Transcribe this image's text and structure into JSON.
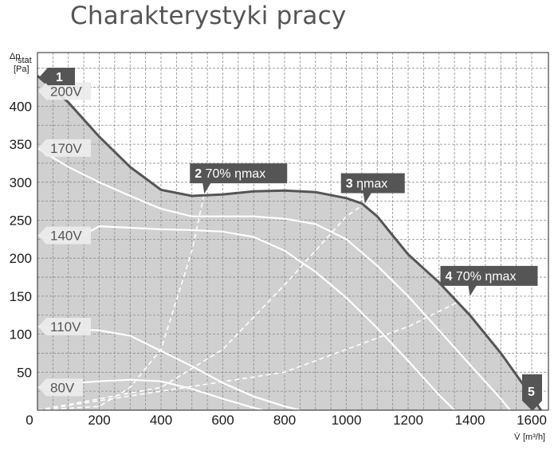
{
  "title": "Charakterystyki pracy",
  "chart_data": {
    "type": "line",
    "ylabel_main": "Δp",
    "ylabel_sub": "stat",
    "ylabel_unit": "[Pa]",
    "xlabel_main": "V̇",
    "xlabel_unit": "[m³/h]",
    "xlim": [
      0,
      1650
    ],
    "ylim": [
      0,
      470
    ],
    "x_ticks": [
      "0",
      "200",
      "400",
      "600",
      "800",
      "1000",
      "1200",
      "1400",
      "1600"
    ],
    "y_ticks": [
      "50",
      "100",
      "150",
      "200",
      "250",
      "300",
      "350",
      "400"
    ],
    "grid": true,
    "envelope": [
      [
        0,
        440
      ],
      [
        100,
        405
      ],
      [
        200,
        360
      ],
      [
        300,
        320
      ],
      [
        400,
        290
      ],
      [
        500,
        282
      ],
      [
        600,
        284
      ],
      [
        700,
        288
      ],
      [
        800,
        289
      ],
      [
        900,
        287
      ],
      [
        1000,
        279
      ],
      [
        1050,
        272
      ],
      [
        1100,
        255
      ],
      [
        1150,
        230
      ],
      [
        1200,
        205
      ],
      [
        1300,
        168
      ],
      [
        1400,
        125
      ],
      [
        1500,
        75
      ],
      [
        1600,
        18
      ],
      [
        1630,
        0
      ]
    ],
    "speed_curves": [
      {
        "label": "200V",
        "points": [
          [
            0,
            420
          ],
          [
            100,
            402
          ],
          [
            200,
            360
          ],
          [
            300,
            320
          ],
          [
            400,
            290
          ],
          [
            500,
            282
          ],
          [
            600,
            284
          ],
          [
            700,
            288
          ],
          [
            800,
            289
          ],
          [
            900,
            287
          ],
          [
            1000,
            279
          ],
          [
            1050,
            272
          ],
          [
            1100,
            255
          ],
          [
            1150,
            230
          ],
          [
            1200,
            205
          ],
          [
            1300,
            168
          ],
          [
            1400,
            125
          ],
          [
            1500,
            75
          ],
          [
            1600,
            18
          ],
          [
            1630,
            0
          ]
        ]
      },
      {
        "label": "170V",
        "points": [
          [
            0,
            345
          ],
          [
            100,
            320
          ],
          [
            200,
            300
          ],
          [
            300,
            282
          ],
          [
            400,
            265
          ],
          [
            500,
            255
          ],
          [
            600,
            255
          ],
          [
            700,
            255
          ],
          [
            800,
            252
          ],
          [
            900,
            245
          ],
          [
            1000,
            225
          ],
          [
            1100,
            190
          ],
          [
            1200,
            150
          ],
          [
            1300,
            105
          ],
          [
            1400,
            60
          ],
          [
            1500,
            15
          ],
          [
            1530,
            0
          ]
        ]
      },
      {
        "label": "140V",
        "points": [
          [
            0,
            230
          ],
          [
            100,
            220
          ],
          [
            200,
            242
          ],
          [
            300,
            240
          ],
          [
            400,
            238
          ],
          [
            500,
            237
          ],
          [
            600,
            235
          ],
          [
            700,
            228
          ],
          [
            800,
            210
          ],
          [
            900,
            182
          ],
          [
            1000,
            148
          ],
          [
            1100,
            108
          ],
          [
            1200,
            65
          ],
          [
            1300,
            20
          ],
          [
            1350,
            0
          ]
        ]
      },
      {
        "label": "110V",
        "points": [
          [
            0,
            110
          ],
          [
            100,
            107
          ],
          [
            200,
            105
          ],
          [
            300,
            98
          ],
          [
            400,
            78
          ],
          [
            500,
            58
          ],
          [
            600,
            36
          ],
          [
            700,
            18
          ],
          [
            800,
            5
          ],
          [
            850,
            0
          ]
        ]
      },
      {
        "label": "80V",
        "points": [
          [
            0,
            30
          ],
          [
            100,
            35
          ],
          [
            200,
            38
          ],
          [
            300,
            40
          ],
          [
            400,
            38
          ],
          [
            500,
            28
          ],
          [
            600,
            15
          ],
          [
            700,
            3
          ],
          [
            730,
            0
          ]
        ]
      }
    ],
    "efficiency_lines": [
      {
        "points": [
          [
            0,
            0
          ],
          [
            200,
            5
          ],
          [
            300,
            30
          ],
          [
            400,
            80
          ],
          [
            500,
            210
          ],
          [
            540,
            285
          ]
        ]
      },
      {
        "points": [
          [
            0,
            0
          ],
          [
            400,
            30
          ],
          [
            600,
            80
          ],
          [
            800,
            165
          ],
          [
            900,
            210
          ],
          [
            1000,
            255
          ],
          [
            1060,
            272
          ]
        ]
      },
      {
        "points": [
          [
            0,
            0
          ],
          [
            800,
            50
          ],
          [
            1000,
            80
          ],
          [
            1200,
            110
          ],
          [
            1300,
            130
          ],
          [
            1400,
            150
          ]
        ]
      }
    ],
    "points": [
      {
        "num": "1",
        "label": "",
        "x": 0,
        "y": 440
      },
      {
        "num": "2",
        "label": "70% ηmax",
        "x": 540,
        "y": 285
      },
      {
        "num": "3",
        "label": "ηmax",
        "x": 1060,
        "y": 272
      },
      {
        "num": "4",
        "label": "70% ηmax",
        "x": 1400,
        "y": 150
      },
      {
        "num": "5",
        "label": "",
        "x": 1630,
        "y": 0
      }
    ]
  }
}
